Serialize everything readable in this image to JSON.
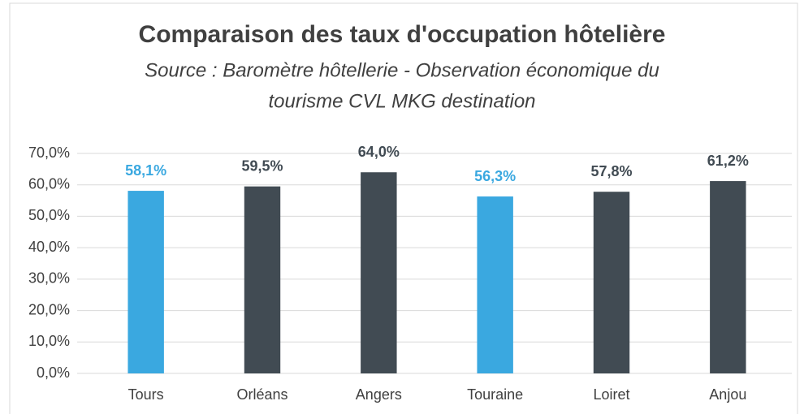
{
  "chart_data": {
    "type": "bar",
    "title": "Comparaison des taux d'occupation hôtelière",
    "subtitle": [
      "Source : Baromètre hôtellerie - Observation économique du",
      "tourisme CVL  MKG destination"
    ],
    "categories": [
      "Tours",
      "Orléans",
      "Angers",
      "Touraine",
      "Loiret",
      "Anjou"
    ],
    "values": [
      58.1,
      59.5,
      64.0,
      56.3,
      57.8,
      61.2
    ],
    "value_labels": [
      "58,1%",
      "59,5%",
      "64,0%",
      "56,3%",
      "57,8%",
      "61,2%"
    ],
    "colors": [
      "#3aa8e0",
      "#414b53",
      "#414b53",
      "#3aa8e0",
      "#414b53",
      "#414b53"
    ],
    "ylim": [
      0,
      70
    ],
    "yticks": [
      {
        "value": 0,
        "label": "0,0%"
      },
      {
        "value": 10,
        "label": "10,0%"
      },
      {
        "value": 20,
        "label": "20,0%"
      },
      {
        "value": 30,
        "label": "30,0%"
      },
      {
        "value": 40,
        "label": "40,0%"
      },
      {
        "value": 50,
        "label": "50,0%"
      },
      {
        "value": 60,
        "label": "60,0%"
      },
      {
        "value": 70,
        "label": "70,0%"
      }
    ],
    "grid": true
  }
}
